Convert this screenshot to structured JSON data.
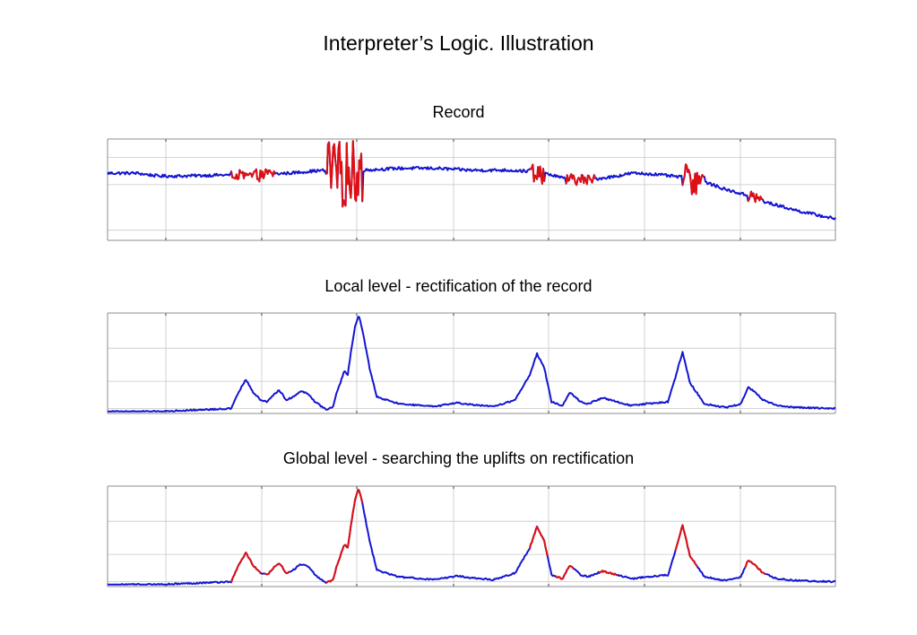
{
  "figure": {
    "title": "Interpreter’s Logic. Illustration"
  },
  "colors": {
    "signal": "#1414d2",
    "highlight": "#e01010",
    "grid": "#c8c8c8",
    "axis": "#8c8c8c"
  },
  "chart_data": [
    {
      "type": "line",
      "title": "Record",
      "xlabel": "",
      "ylabel": "",
      "xlim": [
        0,
        1
      ],
      "ylim": [
        0,
        1
      ],
      "grid": true,
      "series": [
        {
          "role": "trace",
          "color": "#1414d2",
          "x": [
            0,
            0.04,
            0.07,
            0.1,
            0.15,
            0.17,
            0.2,
            0.22,
            0.25,
            0.28,
            0.3,
            0.31,
            0.32,
            0.33,
            0.34,
            0.35,
            0.4,
            0.45,
            0.5,
            0.55,
            0.58,
            0.6,
            0.63,
            0.66,
            0.7,
            0.72,
            0.75,
            0.8,
            0.82,
            0.85,
            0.88,
            0.9,
            0.95,
            1
          ],
          "y": [
            0.67,
            0.67,
            0.64,
            0.64,
            0.65,
            0.65,
            0.64,
            0.66,
            0.67,
            0.69,
            0.7,
            0.65,
            0.66,
            0.68,
            0.7,
            0.7,
            0.72,
            0.72,
            0.7,
            0.7,
            0.69,
            0.67,
            0.61,
            0.6,
            0.64,
            0.67,
            0.66,
            0.62,
            0.58,
            0.5,
            0.44,
            0.38,
            0.28,
            0.2
          ]
        },
        {
          "role": "highlight",
          "color": "#e01010",
          "x": [
            0.17,
            0.23
          ],
          "y": [
            0.6,
            0.75
          ]
        },
        {
          "role": "highlight",
          "color": "#e01010",
          "x": [
            0.3,
            0.35
          ],
          "y": [
            0.0,
            1.0
          ]
        },
        {
          "role": "highlight",
          "color": "#e01010",
          "x": [
            0.58,
            0.6
          ],
          "y": [
            0.5,
            0.82
          ]
        },
        {
          "role": "highlight",
          "color": "#e01010",
          "x": [
            0.63,
            0.67
          ],
          "y": [
            0.58,
            0.74
          ]
        },
        {
          "role": "highlight",
          "color": "#e01010",
          "x": [
            0.79,
            0.82
          ],
          "y": [
            0.55,
            1.0
          ]
        },
        {
          "role": "highlight",
          "color": "#e01010",
          "x": [
            0.88,
            0.9
          ],
          "y": [
            0.35,
            0.55
          ]
        }
      ]
    },
    {
      "type": "line",
      "title": "Local level - rectification of the record",
      "xlabel": "",
      "ylabel": "",
      "xlim": [
        0,
        1
      ],
      "ylim": [
        0,
        1
      ],
      "grid": true,
      "series": [
        {
          "role": "trace",
          "color": "#1414d2",
          "x": [
            0,
            0.07,
            0.17,
            0.18,
            0.19,
            0.2,
            0.21,
            0.22,
            0.225,
            0.235,
            0.24,
            0.245,
            0.255,
            0.265,
            0.275,
            0.285,
            0.3,
            0.31,
            0.315,
            0.32,
            0.325,
            0.33,
            0.335,
            0.34,
            0.345,
            0.35,
            0.36,
            0.37,
            0.4,
            0.45,
            0.48,
            0.5,
            0.53,
            0.56,
            0.58,
            0.59,
            0.6,
            0.61,
            0.625,
            0.635,
            0.65,
            0.66,
            0.68,
            0.7,
            0.72,
            0.74,
            0.77,
            0.78,
            0.79,
            0.8,
            0.82,
            0.85,
            0.87,
            0.88,
            0.89,
            0.9,
            0.92,
            0.95,
            1
          ],
          "y": [
            0.0,
            0.0,
            0.03,
            0.2,
            0.33,
            0.2,
            0.12,
            0.1,
            0.15,
            0.22,
            0.18,
            0.12,
            0.15,
            0.21,
            0.19,
            0.1,
            0.02,
            0.05,
            0.2,
            0.3,
            0.42,
            0.38,
            0.65,
            0.88,
            1.0,
            0.85,
            0.45,
            0.15,
            0.08,
            0.05,
            0.09,
            0.07,
            0.05,
            0.12,
            0.38,
            0.6,
            0.45,
            0.1,
            0.06,
            0.2,
            0.1,
            0.08,
            0.14,
            0.1,
            0.06,
            0.08,
            0.1,
            0.35,
            0.62,
            0.3,
            0.08,
            0.04,
            0.08,
            0.25,
            0.2,
            0.12,
            0.06,
            0.04,
            0.03
          ]
        }
      ]
    },
    {
      "type": "line",
      "title": "Global level - searching the uplifts on rectification",
      "xlabel": "",
      "ylabel": "",
      "xlim": [
        0,
        1
      ],
      "ylim": [
        0,
        1
      ],
      "grid": true,
      "series": [
        {
          "role": "trace",
          "color": "#1414d2",
          "x": [
            0,
            0.07,
            0.17,
            0.18,
            0.19,
            0.2,
            0.21,
            0.22,
            0.225,
            0.235,
            0.24,
            0.245,
            0.255,
            0.265,
            0.275,
            0.285,
            0.3,
            0.31,
            0.315,
            0.32,
            0.325,
            0.33,
            0.335,
            0.34,
            0.345,
            0.35,
            0.36,
            0.37,
            0.4,
            0.45,
            0.48,
            0.5,
            0.53,
            0.56,
            0.58,
            0.59,
            0.6,
            0.61,
            0.625,
            0.635,
            0.65,
            0.66,
            0.68,
            0.7,
            0.72,
            0.74,
            0.77,
            0.78,
            0.79,
            0.8,
            0.82,
            0.85,
            0.87,
            0.88,
            0.89,
            0.9,
            0.92,
            0.95,
            1
          ],
          "y": [
            0.0,
            0.0,
            0.03,
            0.2,
            0.33,
            0.2,
            0.12,
            0.1,
            0.15,
            0.22,
            0.18,
            0.12,
            0.15,
            0.21,
            0.19,
            0.1,
            0.02,
            0.05,
            0.2,
            0.3,
            0.42,
            0.38,
            0.65,
            0.88,
            1.0,
            0.85,
            0.45,
            0.15,
            0.08,
            0.05,
            0.09,
            0.07,
            0.05,
            0.12,
            0.38,
            0.6,
            0.45,
            0.1,
            0.06,
            0.2,
            0.1,
            0.08,
            0.14,
            0.1,
            0.06,
            0.08,
            0.1,
            0.35,
            0.62,
            0.3,
            0.08,
            0.04,
            0.08,
            0.25,
            0.2,
            0.12,
            0.06,
            0.04,
            0.03
          ]
        },
        {
          "role": "highlight",
          "color": "#e01010",
          "x": [
            0.17,
            0.21
          ],
          "y": [
            0,
            1
          ]
        },
        {
          "role": "highlight",
          "color": "#e01010",
          "x": [
            0.215,
            0.25
          ],
          "y": [
            0,
            1
          ]
        },
        {
          "role": "highlight",
          "color": "#e01010",
          "x": [
            0.3,
            0.35
          ],
          "y": [
            0,
            1
          ]
        },
        {
          "role": "highlight",
          "color": "#e01010",
          "x": [
            0.58,
            0.605
          ],
          "y": [
            0,
            1
          ]
        },
        {
          "role": "highlight",
          "color": "#e01010",
          "x": [
            0.615,
            0.64
          ],
          "y": [
            0,
            1
          ]
        },
        {
          "role": "highlight",
          "color": "#e01010",
          "x": [
            0.675,
            0.7
          ],
          "y": [
            0,
            1
          ]
        },
        {
          "role": "highlight",
          "color": "#e01010",
          "x": [
            0.78,
            0.81
          ],
          "y": [
            0,
            1
          ]
        },
        {
          "role": "highlight",
          "color": "#e01010",
          "x": [
            0.875,
            0.905
          ],
          "y": [
            0,
            1
          ]
        }
      ]
    }
  ]
}
